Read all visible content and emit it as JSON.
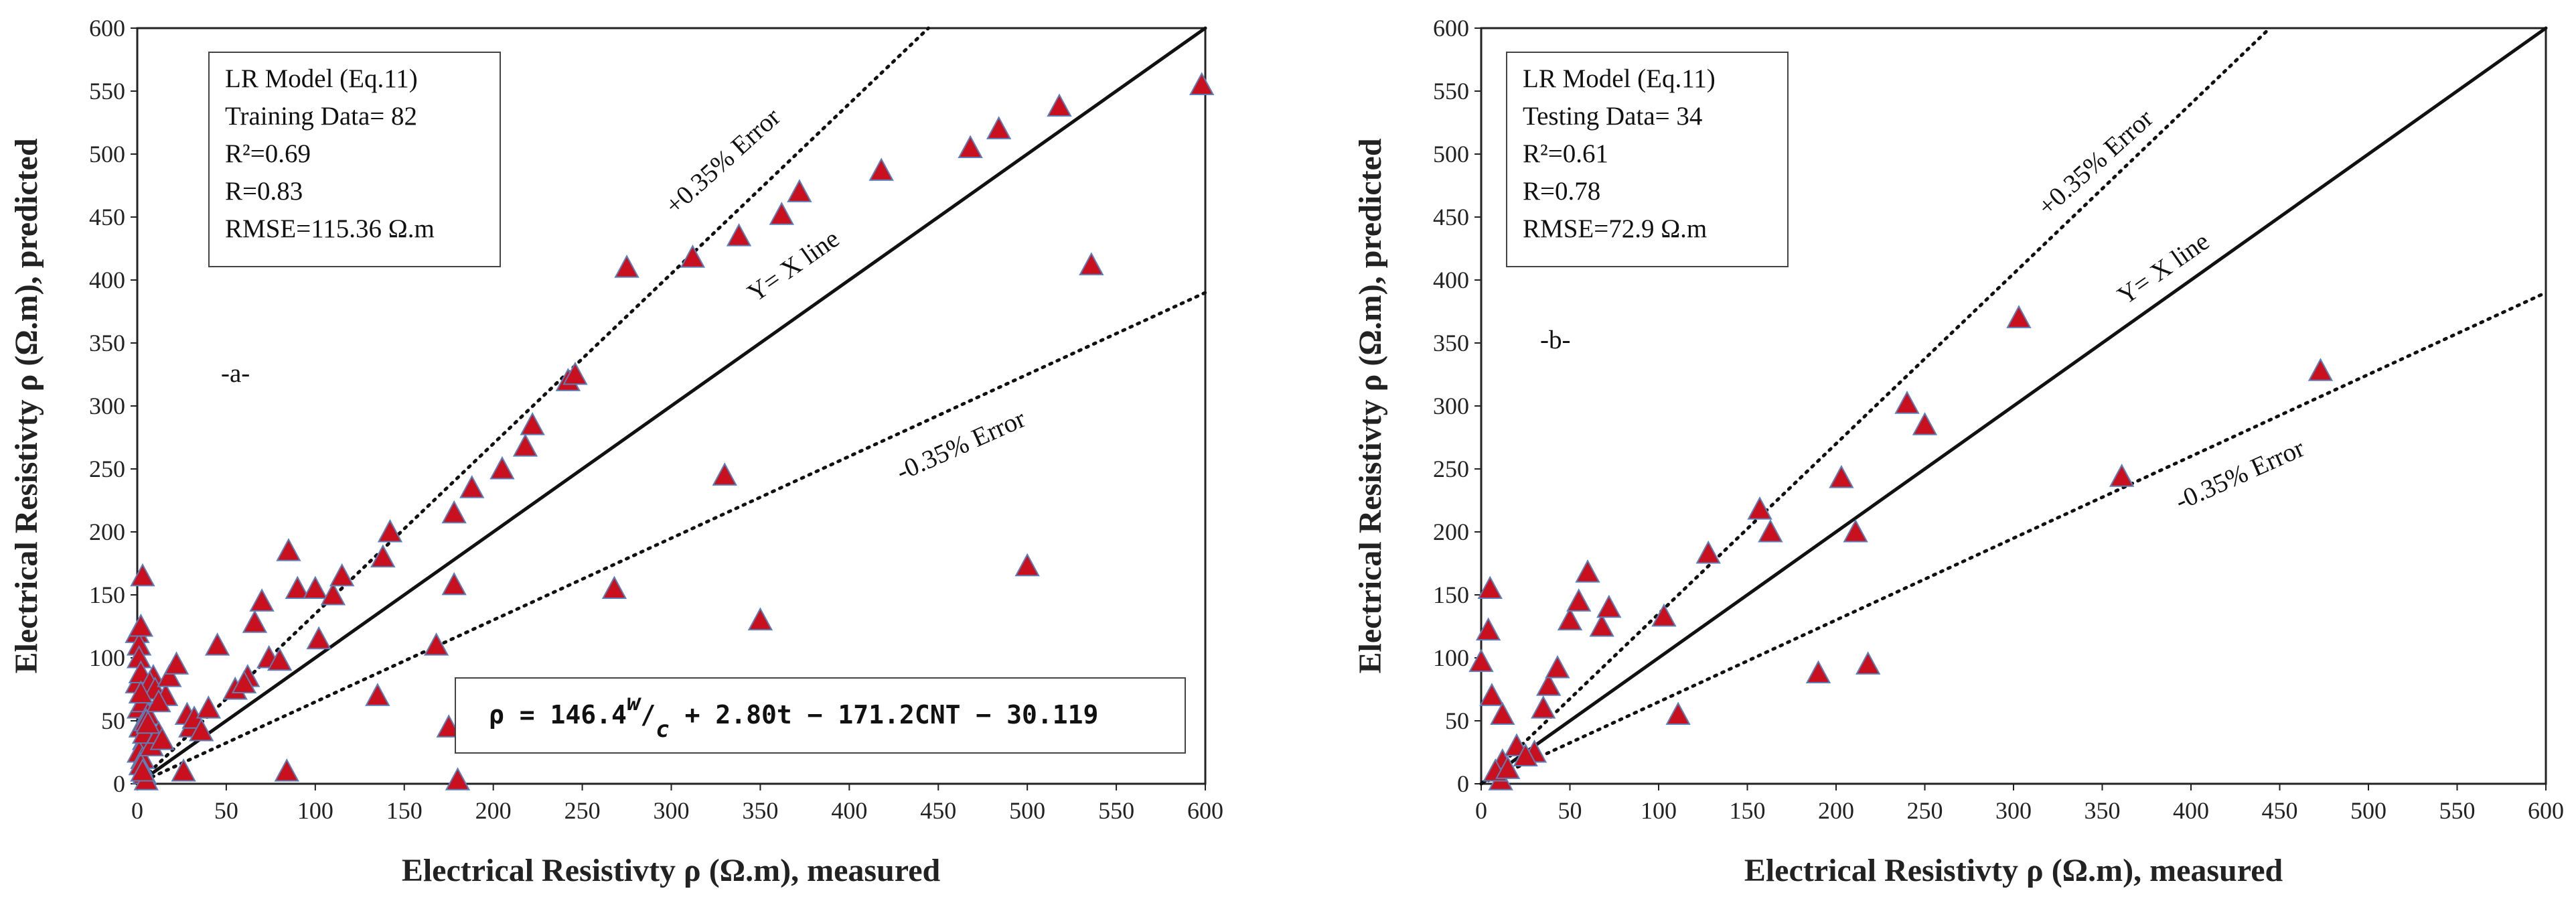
{
  "chart_data": [
    {
      "type": "scatter",
      "xlabel": "Electrical Resistivty ρ (Ω.m), measured",
      "ylabel": "Electrical Resistivty ρ (Ω.m), predicted",
      "xlim": [
        0,
        600
      ],
      "ylim": [
        0,
        600
      ],
      "xticks": [
        0,
        50,
        100,
        150,
        200,
        250,
        300,
        350,
        400,
        450,
        500,
        550,
        600
      ],
      "yticks": [
        0,
        50,
        100,
        150,
        200,
        250,
        300,
        350,
        400,
        450,
        500,
        550,
        600
      ],
      "legend_lines": [
        "LR Model (Eq.11)",
        "Training Data= 82",
        "R²=0.69",
        "R=0.83",
        "RMSE=115.36 Ω.m"
      ],
      "panel_label": "-a-",
      "line_labels": {
        "identity": "Y= X line",
        "upper": "+0.35% Error",
        "lower": "-0.35% Error"
      },
      "reference_lines": {
        "identity_slope": 1.0,
        "upper_slope": 1.35,
        "lower_slope": 0.65
      },
      "equation": {
        "prefix": "ρ = 146.4",
        "w": "w",
        "c": "c",
        "suffix": " + 2.80t − 171.2CNT − 30.119"
      },
      "points": [
        [
          0,
          120
        ],
        [
          1,
          110
        ],
        [
          2,
          125
        ],
        [
          3,
          165
        ],
        [
          1,
          100
        ],
        [
          0,
          80
        ],
        [
          2,
          88
        ],
        [
          1,
          60
        ],
        [
          3,
          65
        ],
        [
          2,
          45
        ],
        [
          4,
          35
        ],
        [
          1,
          25
        ],
        [
          3,
          20
        ],
        [
          2,
          15
        ],
        [
          4,
          8
        ],
        [
          5,
          3
        ],
        [
          6,
          55
        ],
        [
          5,
          50
        ],
        [
          4,
          40
        ],
        [
          8,
          30
        ],
        [
          9,
          85
        ],
        [
          7,
          80
        ],
        [
          10,
          75
        ],
        [
          12,
          40
        ],
        [
          14,
          35
        ],
        [
          16,
          70
        ],
        [
          18,
          85
        ],
        [
          22,
          95
        ],
        [
          28,
          55
        ],
        [
          30,
          45
        ],
        [
          32,
          52
        ],
        [
          26,
          10
        ],
        [
          45,
          110
        ],
        [
          55,
          75
        ],
        [
          62,
          85
        ],
        [
          66,
          128
        ],
        [
          70,
          145
        ],
        [
          74,
          100
        ],
        [
          80,
          98
        ],
        [
          85,
          185
        ],
        [
          90,
          155
        ],
        [
          100,
          155
        ],
        [
          102,
          115
        ],
        [
          110,
          150
        ],
        [
          115,
          165
        ],
        [
          135,
          70
        ],
        [
          138,
          180
        ],
        [
          142,
          200
        ],
        [
          168,
          110
        ],
        [
          175,
          45
        ],
        [
          178,
          215
        ],
        [
          178,
          158
        ],
        [
          180,
          3
        ],
        [
          188,
          235
        ],
        [
          205,
          250
        ],
        [
          218,
          268
        ],
        [
          222,
          285
        ],
        [
          242,
          320
        ],
        [
          246,
          325
        ],
        [
          268,
          155
        ],
        [
          275,
          410
        ],
        [
          312,
          418
        ],
        [
          330,
          245
        ],
        [
          338,
          435
        ],
        [
          350,
          130
        ],
        [
          362,
          452
        ],
        [
          372,
          470
        ],
        [
          418,
          487
        ],
        [
          468,
          505
        ],
        [
          484,
          520
        ],
        [
          500,
          173
        ],
        [
          518,
          538
        ],
        [
          536,
          412
        ],
        [
          598,
          555
        ],
        [
          84,
          10
        ],
        [
          60,
          80
        ],
        [
          36,
          42
        ],
        [
          12,
          65
        ],
        [
          6,
          48
        ],
        [
          3,
          10
        ],
        [
          2,
          72
        ],
        [
          40,
          60
        ]
      ]
    },
    {
      "type": "scatter",
      "xlabel": "Electrical Resistivty ρ (Ω.m), measured",
      "ylabel": "Electrical Resistivty ρ (Ω.m), predicted",
      "xlim": [
        0,
        600
      ],
      "ylim": [
        0,
        600
      ],
      "xticks": [
        0,
        50,
        100,
        150,
        200,
        250,
        300,
        350,
        400,
        450,
        500,
        550,
        600
      ],
      "yticks": [
        0,
        50,
        100,
        150,
        200,
        250,
        300,
        350,
        400,
        450,
        500,
        550,
        600
      ],
      "legend_lines": [
        "LR Model (Eq.11)",
        "Testing Data= 34",
        "R²=0.61",
        "R=0.78",
        "RMSE=72.9 Ω.m"
      ],
      "panel_label": "-b-",
      "line_labels": {
        "identity": "Y= X line",
        "upper": "+0.35% Error",
        "lower": "-0.35% Error"
      },
      "reference_lines": {
        "identity_slope": 1.0,
        "upper_slope": 1.35,
        "lower_slope": 0.65
      },
      "points": [
        [
          0,
          97
        ],
        [
          5,
          155
        ],
        [
          4,
          122
        ],
        [
          6,
          70
        ],
        [
          12,
          55
        ],
        [
          12,
          18
        ],
        [
          11,
          3
        ],
        [
          30,
          25
        ],
        [
          35,
          60
        ],
        [
          38,
          78
        ],
        [
          43,
          92
        ],
        [
          50,
          130
        ],
        [
          55,
          145
        ],
        [
          60,
          168
        ],
        [
          68,
          125
        ],
        [
          72,
          140
        ],
        [
          103,
          133
        ],
        [
          111,
          55
        ],
        [
          128,
          183
        ],
        [
          157,
          218
        ],
        [
          163,
          200
        ],
        [
          190,
          88
        ],
        [
          203,
          243
        ],
        [
          211,
          200
        ],
        [
          218,
          95
        ],
        [
          240,
          302
        ],
        [
          250,
          285
        ],
        [
          303,
          370
        ],
        [
          361,
          244
        ],
        [
          473,
          328
        ],
        [
          20,
          30
        ],
        [
          8,
          10
        ],
        [
          25,
          22
        ],
        [
          15,
          12
        ]
      ]
    }
  ]
}
